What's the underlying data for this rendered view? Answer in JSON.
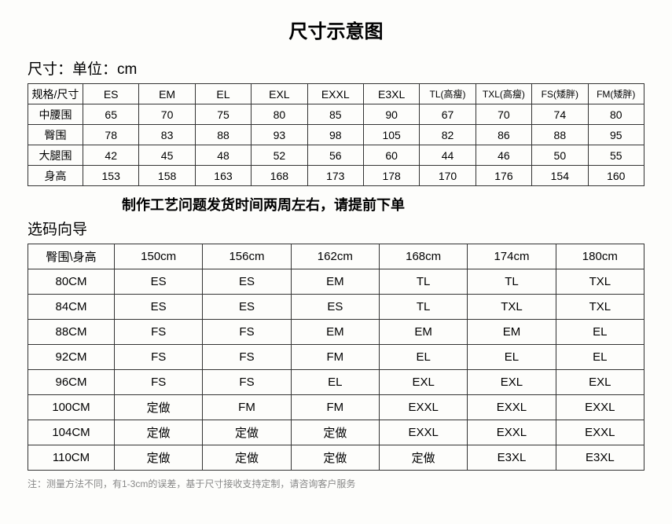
{
  "title": "尺寸示意图",
  "subtitle": "尺寸：单位：cm",
  "table1": {
    "header": [
      "规格/尺寸",
      "ES",
      "EM",
      "EL",
      "EXL",
      "EXXL",
      "E3XL",
      "TL(高瘦)",
      "TXL(高瘦)",
      "FS(矮胖)",
      "FM(矮胖)"
    ],
    "rows": [
      [
        "中腰围",
        "65",
        "70",
        "75",
        "80",
        "85",
        "90",
        "67",
        "70",
        "74",
        "80"
      ],
      [
        "臀围",
        "78",
        "83",
        "88",
        "93",
        "98",
        "105",
        "82",
        "86",
        "88",
        "95"
      ],
      [
        "大腿围",
        "42",
        "45",
        "48",
        "52",
        "56",
        "60",
        "44",
        "46",
        "50",
        "55"
      ],
      [
        "身高",
        "153",
        "158",
        "163",
        "168",
        "173",
        "178",
        "170",
        "176",
        "154",
        "160"
      ]
    ]
  },
  "notice": "制作工艺问题发货时间两周左右，请提前下单",
  "guide_title": "选码向导",
  "table2": {
    "header": [
      "臀围\\身高",
      "150cm",
      "156cm",
      "162cm",
      "168cm",
      "174cm",
      "180cm"
    ],
    "rows": [
      [
        "80CM",
        "ES",
        "ES",
        "EM",
        "TL",
        "TL",
        "TXL"
      ],
      [
        "84CM",
        "ES",
        "ES",
        "ES",
        "TL",
        "TXL",
        "TXL"
      ],
      [
        "88CM",
        "FS",
        "FS",
        "EM",
        "EM",
        "EM",
        "EL"
      ],
      [
        "92CM",
        "FS",
        "FS",
        "FM",
        "EL",
        "EL",
        "EL"
      ],
      [
        "96CM",
        "FS",
        "FS",
        "EL",
        "EXL",
        "EXL",
        "EXL"
      ],
      [
        "100CM",
        "定做",
        "FM",
        "FM",
        "EXXL",
        "EXXL",
        "EXXL"
      ],
      [
        "104CM",
        "定做",
        "定做",
        "定做",
        "EXXL",
        "EXXL",
        "EXXL"
      ],
      [
        "110CM",
        "定做",
        "定做",
        "定做",
        "定做",
        "E3XL",
        "E3XL"
      ]
    ]
  },
  "footnote": "注：测量方法不同，有1-3cm的误差，基于尺寸接收支持定制，请咨询客户服务"
}
